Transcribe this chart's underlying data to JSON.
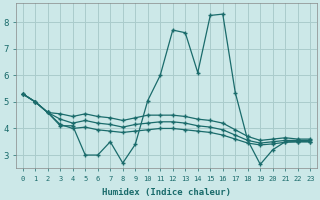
{
  "xlabel": "Humidex (Indice chaleur)",
  "background_color": "#cce8e8",
  "grid_color": "#aacccc",
  "line_color": "#1a6b6b",
  "x": [
    0,
    1,
    2,
    3,
    4,
    5,
    6,
    7,
    8,
    9,
    10,
    11,
    12,
    13,
    14,
    15,
    16,
    17,
    18,
    19,
    20,
    21,
    22,
    23
  ],
  "y_main": [
    5.3,
    5.0,
    4.6,
    4.1,
    4.1,
    3.0,
    3.0,
    3.5,
    2.7,
    3.4,
    5.05,
    6.0,
    7.7,
    7.6,
    6.1,
    8.25,
    8.3,
    5.35,
    3.55,
    2.65,
    3.2,
    3.5,
    3.5,
    3.5
  ],
  "y_upper": [
    5.3,
    5.0,
    4.6,
    4.55,
    4.45,
    4.55,
    4.45,
    4.4,
    4.3,
    4.4,
    4.5,
    4.5,
    4.5,
    4.45,
    4.35,
    4.3,
    4.2,
    3.95,
    3.7,
    3.55,
    3.6,
    3.65,
    3.6,
    3.6
  ],
  "y_mid1": [
    5.3,
    5.0,
    4.6,
    4.35,
    4.2,
    4.3,
    4.2,
    4.15,
    4.05,
    4.15,
    4.2,
    4.25,
    4.25,
    4.2,
    4.1,
    4.05,
    3.95,
    3.75,
    3.55,
    3.45,
    3.5,
    3.55,
    3.55,
    3.55
  ],
  "y_mid2": [
    5.3,
    5.0,
    4.6,
    4.15,
    4.0,
    4.05,
    3.95,
    3.9,
    3.85,
    3.9,
    3.95,
    4.0,
    4.0,
    3.95,
    3.9,
    3.85,
    3.75,
    3.6,
    3.45,
    3.38,
    3.42,
    3.48,
    3.5,
    3.5
  ],
  "ylim": [
    2.5,
    8.7
  ],
  "yticks": [
    3,
    4,
    5,
    6,
    7,
    8
  ],
  "xlim": [
    -0.5,
    23.5
  ],
  "figsize": [
    3.2,
    2.0
  ],
  "dpi": 100
}
